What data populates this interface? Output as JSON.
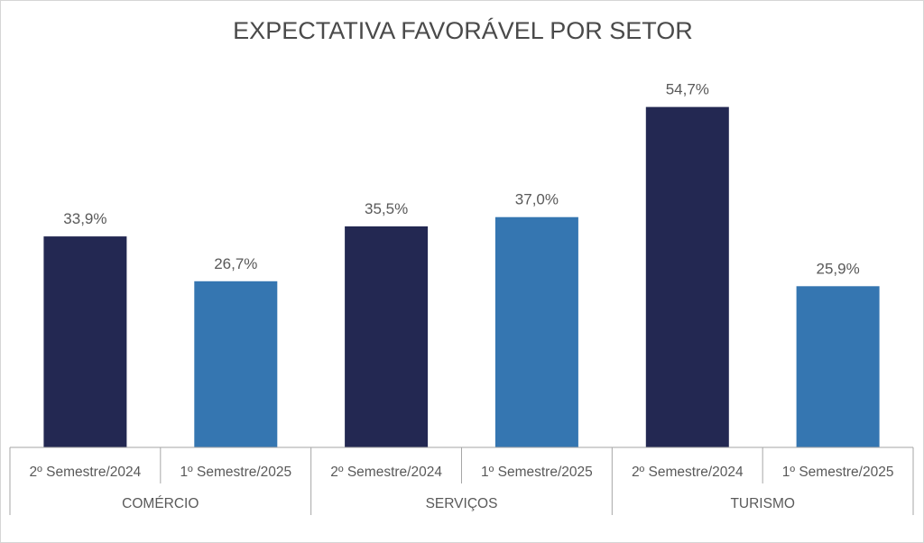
{
  "chart_data": {
    "type": "bar",
    "title": "EXPECTATIVA FAVORÁVEL POR SETOR",
    "groups": [
      "COMÉRCIO",
      "SERVIÇOS",
      "TURISMO"
    ],
    "categories": [
      "2º Semestre/2024",
      "1º Semestre/2025",
      "2º Semestre/2024",
      "1º Semestre/2025",
      "2º Semestre/2024",
      "1º Semestre/2025"
    ],
    "values": [
      33.9,
      26.7,
      35.5,
      37.0,
      54.7,
      25.9
    ],
    "value_labels": [
      "33,9%",
      "26,7%",
      "35,5%",
      "37,0%",
      "54,7%",
      "25,9%"
    ],
    "unit": "%",
    "ylim": [
      0,
      60
    ],
    "grid": false,
    "colors": {
      "2º Semestre/2024": "#232852",
      "1º Semestre/2025": "#3576b1"
    }
  }
}
